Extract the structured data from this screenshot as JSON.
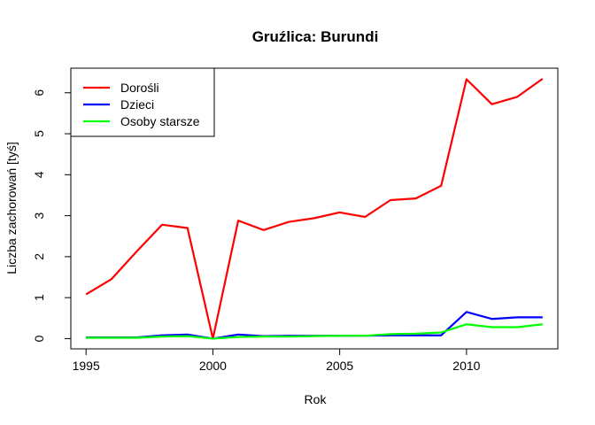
{
  "chart_data": {
    "type": "line",
    "title": "Gruźlica: Burundi",
    "xlabel": "Rok",
    "ylabel": "Liczba zachorowań [tyś]",
    "xlim": [
      1994.4,
      2013.6
    ],
    "ylim": [
      -0.25,
      6.6
    ],
    "x_ticks": [
      1995,
      2000,
      2005,
      2010
    ],
    "y_ticks": [
      0,
      1,
      2,
      3,
      4,
      5,
      6
    ],
    "legend_position": "top-left",
    "grid": false,
    "x": [
      1995,
      1996,
      1997,
      1998,
      1999,
      2000,
      2001,
      2002,
      2003,
      2004,
      2005,
      2006,
      2007,
      2008,
      2009,
      2010,
      2011,
      2012,
      2013
    ],
    "series": [
      {
        "name": "Dorośli",
        "color": "#ff0000",
        "values": [
          1.08,
          1.45,
          2.13,
          2.78,
          2.7,
          0.0,
          2.88,
          2.65,
          2.85,
          2.94,
          3.08,
          2.97,
          3.38,
          3.42,
          3.73,
          6.33,
          5.72,
          5.9,
          6.34
        ]
      },
      {
        "name": "Dzieci",
        "color": "#0000ff",
        "values": [
          0.03,
          0.03,
          0.03,
          0.08,
          0.1,
          0.0,
          0.1,
          0.06,
          0.07,
          0.07,
          0.07,
          0.07,
          0.08,
          0.08,
          0.08,
          0.65,
          0.48,
          0.52,
          0.52
        ]
      },
      {
        "name": "Osoby starsze",
        "color": "#00ff00",
        "values": [
          0.02,
          0.02,
          0.02,
          0.05,
          0.06,
          0.0,
          0.04,
          0.05,
          0.05,
          0.06,
          0.07,
          0.07,
          0.11,
          0.12,
          0.15,
          0.35,
          0.28,
          0.28,
          0.35
        ]
      }
    ]
  }
}
